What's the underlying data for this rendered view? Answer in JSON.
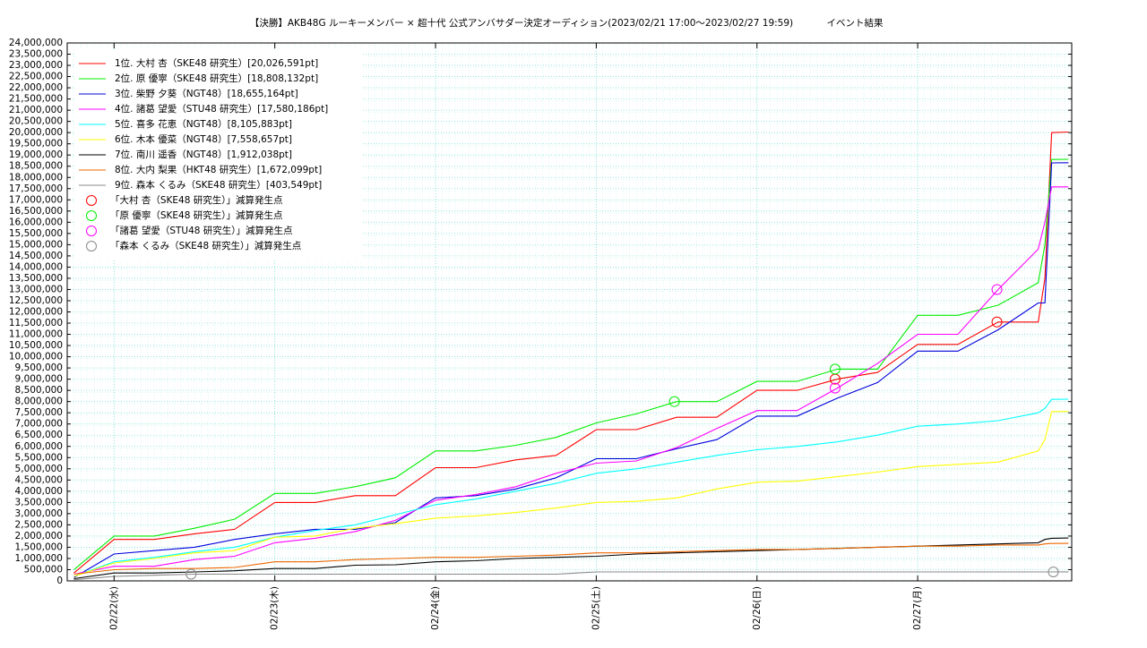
{
  "chart_data": {
    "type": "line",
    "title": "【決勝】AKB48G ルーキーメンバー × 超十代 公式アンバサダー決定オーディション(2023/02/21 17:00〜2023/02/27 19:59)",
    "subtitle": "イベント結果",
    "x": [
      "02/21 18:00",
      "02/22 00:00",
      "02/22 06:00",
      "02/22 12:00",
      "02/22 18:00",
      "02/23 00:00",
      "02/23 06:00",
      "02/23 12:00",
      "02/23 18:00",
      "02/24 00:00",
      "02/24 06:00",
      "02/24 12:00",
      "02/24 18:00",
      "02/25 00:00",
      "02/25 06:00",
      "02/25 12:00",
      "02/25 18:00",
      "02/26 00:00",
      "02/26 06:00",
      "02/26 12:00",
      "02/26 18:00",
      "02/27 00:00",
      "02/27 06:00",
      "02/27 12:00",
      "02/27 18:00",
      "02/27 19:00",
      "02/27 20:00",
      "02/27 22:30"
    ],
    "xlim": [
      "02/21 17:00",
      "02/27 23:00"
    ],
    "xticks": [
      {
        "value": "02/22 00:00",
        "label": "02/22(水)"
      },
      {
        "value": "02/23 00:00",
        "label": "02/23(木)"
      },
      {
        "value": "02/24 00:00",
        "label": "02/24(金)"
      },
      {
        "value": "02/25 00:00",
        "label": "02/25(土)"
      },
      {
        "value": "02/26 00:00",
        "label": "02/26(日)"
      },
      {
        "value": "02/27 00:00",
        "label": "02/27(月)"
      }
    ],
    "ylim": [
      0,
      24000000
    ],
    "yticks": [
      0,
      {
        "value": 500000,
        "label": "500,000"
      },
      {
        "value": 1000000,
        "label": "1,000,000"
      },
      {
        "value": 1500000,
        "label": "1,500,000"
      },
      {
        "value": 2000000,
        "label": "2,000,000"
      },
      {
        "value": 2500000,
        "label": "2,500,000"
      },
      {
        "value": 3000000,
        "label": "3,000,000"
      },
      {
        "value": 3500000,
        "label": "3,500,000"
      },
      {
        "value": 4000000,
        "label": "4,000,000"
      },
      {
        "value": 4500000,
        "label": "4,500,000"
      },
      {
        "value": 5000000,
        "label": "5,000,000"
      },
      {
        "value": 5500000,
        "label": "5,500,000"
      },
      {
        "value": 6000000,
        "label": "6,000,000"
      },
      {
        "value": 6500000,
        "label": "6,500,000"
      },
      {
        "value": 7000000,
        "label": "7,000,000"
      },
      {
        "value": 7500000,
        "label": "7,500,000"
      },
      {
        "value": 8000000,
        "label": "8,000,000"
      },
      {
        "value": 8500000,
        "label": "8,500,000"
      },
      {
        "value": 9000000,
        "label": "9,000,000"
      },
      {
        "value": 9500000,
        "label": "9,500,000"
      },
      {
        "value": 10000000,
        "label": "10,000,000"
      },
      {
        "value": 10500000,
        "label": "10,500,000"
      },
      {
        "value": 11000000,
        "label": "11,000,000"
      },
      {
        "value": 11500000,
        "label": "11,500,000"
      },
      {
        "value": 12000000,
        "label": "12,000,000"
      },
      {
        "value": 12500000,
        "label": "12,500,000"
      },
      {
        "value": 13000000,
        "label": "13,000,000"
      },
      {
        "value": 13500000,
        "label": "13,500,000"
      },
      {
        "value": 14000000,
        "label": "14,000,000"
      },
      {
        "value": 14500000,
        "label": "14,500,000"
      },
      {
        "value": 15000000,
        "label": "15,000,000"
      },
      {
        "value": 15500000,
        "label": "15,500,000"
      },
      {
        "value": 16000000,
        "label": "16,000,000"
      },
      {
        "value": 16500000,
        "label": "16,500,000"
      },
      {
        "value": 17000000,
        "label": "17,000,000"
      },
      {
        "value": 17500000,
        "label": "17,500,000"
      },
      {
        "value": 18000000,
        "label": "18,000,000"
      },
      {
        "value": 18500000,
        "label": "18,500,000"
      },
      {
        "value": 19000000,
        "label": "19,000,000"
      },
      {
        "value": 19500000,
        "label": "19,500,000"
      },
      {
        "value": 20000000,
        "label": "20,000,000"
      },
      {
        "value": 20500000,
        "label": "20,500,000"
      },
      {
        "value": 21000000,
        "label": "21,000,000"
      },
      {
        "value": 21500000,
        "label": "21,500,000"
      },
      {
        "value": 22000000,
        "label": "22,000,000"
      },
      {
        "value": 22500000,
        "label": "22,500,000"
      },
      {
        "value": 23000000,
        "label": "23,000,000"
      },
      {
        "value": 23500000,
        "label": "23,500,000"
      },
      {
        "value": 24000000,
        "label": "24,000,000"
      }
    ],
    "grid": true,
    "legend": "upper left",
    "series": [
      {
        "name": "1位. 大村 杏（SKE48 研究生）[20,026,591pt]",
        "color": "#ff0000",
        "values": [
          350000,
          1850000,
          1850000,
          2100000,
          2300000,
          3500000,
          3500000,
          3800000,
          3800000,
          5050000,
          5050000,
          5400000,
          5600000,
          6750000,
          6750000,
          7300000,
          7300000,
          8500000,
          8500000,
          9000000,
          9300000,
          10550000,
          10550000,
          11550000,
          11550000,
          13500000,
          20000000,
          20026591
        ]
      },
      {
        "name": "2位. 原 優寧（SKE48 研究生）[18,808,132pt]",
        "color": "#00ee00",
        "values": [
          500000,
          2000000,
          2000000,
          2350000,
          2750000,
          3900000,
          3900000,
          4200000,
          4600000,
          5800000,
          5800000,
          6050000,
          6400000,
          7050000,
          7450000,
          8000000,
          8000000,
          8900000,
          8900000,
          9450000,
          9450000,
          11850000,
          11850000,
          12300000,
          13300000,
          15000000,
          18800000,
          18808132
        ]
      },
      {
        "name": "3位. 柴野 夕葵（NGT48）[18,655,164pt]",
        "color": "#0000dd",
        "values": [
          150000,
          1200000,
          1350000,
          1500000,
          1850000,
          2100000,
          2300000,
          2300000,
          2600000,
          3700000,
          3800000,
          4100000,
          4600000,
          5450000,
          5450000,
          5900000,
          6300000,
          7350000,
          7350000,
          8150000,
          8850000,
          10250000,
          10250000,
          11200000,
          12400000,
          12400000,
          18650000,
          18655164
        ]
      },
      {
        "name": "4位. 諸葛 望愛（STU48 研究生）[17,580,186pt]",
        "color": "#ff00ff",
        "values": [
          300000,
          650000,
          650000,
          950000,
          1100000,
          1700000,
          1900000,
          2200000,
          2700000,
          3600000,
          3850000,
          4200000,
          4800000,
          5250000,
          5350000,
          5950000,
          6800000,
          7600000,
          7600000,
          8600000,
          9700000,
          11000000,
          11000000,
          13000000,
          14800000,
          16000000,
          17580000,
          17580186
        ]
      },
      {
        "name": "5位. 喜多 花恵（NGT48）[8,105,883pt]",
        "color": "#00ffff",
        "values": [
          200000,
          850000,
          1050000,
          1300000,
          1500000,
          1950000,
          2250000,
          2500000,
          2950000,
          3400000,
          3650000,
          4000000,
          4350000,
          4800000,
          5000000,
          5300000,
          5600000,
          5850000,
          6000000,
          6200000,
          6500000,
          6900000,
          7000000,
          7150000,
          7500000,
          7700000,
          8100000,
          8105883
        ]
      },
      {
        "name": "6位. 木本 優菜（NGT48）[7,558,657pt]",
        "color": "#ffff00",
        "values": [
          200000,
          800000,
          1000000,
          1250000,
          1350000,
          1950000,
          2000000,
          2350000,
          2550000,
          2800000,
          2900000,
          3050000,
          3250000,
          3500000,
          3550000,
          3700000,
          4100000,
          4400000,
          4450000,
          4650000,
          4850000,
          5100000,
          5200000,
          5300000,
          5800000,
          6300000,
          7550000,
          7558657
        ]
      },
      {
        "name": "7位. 南川 遥香（NGT48）[1,912,038pt]",
        "color": "#000000",
        "values": [
          100000,
          350000,
          350000,
          400000,
          450000,
          550000,
          550000,
          700000,
          720000,
          850000,
          900000,
          1000000,
          1050000,
          1100000,
          1200000,
          1250000,
          1300000,
          1350000,
          1400000,
          1450000,
          1500000,
          1550000,
          1600000,
          1650000,
          1700000,
          1850000,
          1900000,
          1912038
        ]
      },
      {
        "name": "8位. 大内 梨果（HKT48 研究生）[1,672,099pt]",
        "color": "#ee6600",
        "values": [
          300000,
          500000,
          550000,
          550000,
          600000,
          850000,
          850000,
          950000,
          1000000,
          1050000,
          1050000,
          1100000,
          1150000,
          1250000,
          1250000,
          1300000,
          1350000,
          1400000,
          1400000,
          1450000,
          1500000,
          1550000,
          1550000,
          1600000,
          1600000,
          1650000,
          1670000,
          1672099
        ]
      },
      {
        "name": "9位. 森本 くるみ（SKE48 研究生）[403,549pt]",
        "color": "#888888",
        "values": [
          50000,
          200000,
          250000,
          300000,
          300000,
          300000,
          300000,
          300000,
          300000,
          300000,
          300000,
          300000,
          300000,
          400000,
          400000,
          400000,
          400000,
          400000,
          400000,
          400000,
          400000,
          400000,
          400000,
          400000,
          400000,
          400000,
          400000,
          403549
        ]
      }
    ],
    "markers": [
      {
        "name": "「大村 杏（SKE48 研究生）」減算発生点",
        "color": "#ff0000",
        "x": [
          "02/26 11:40",
          "02/27 11:50"
        ],
        "values": [
          9000000,
          11550000
        ]
      },
      {
        "name": "「原 優寧（SKE48 研究生）」減算発生点",
        "color": "#00ee00",
        "x": [
          "02/25 11:40",
          "02/26 11:40"
        ],
        "values": [
          8000000,
          9450000
        ]
      },
      {
        "name": "「諸葛 望愛（STU48 研究生）」減算発生点",
        "color": "#ff00ff",
        "x": [
          "02/26 11:40",
          "02/27 11:50"
        ],
        "values": [
          8600000,
          13000000
        ]
      },
      {
        "name": "「森本 くるみ（SKE48 研究生）」減算発生点",
        "color": "#888888",
        "x": [
          "02/22 11:30",
          "02/27 20:15"
        ],
        "values": [
          300000,
          400000
        ]
      }
    ]
  }
}
